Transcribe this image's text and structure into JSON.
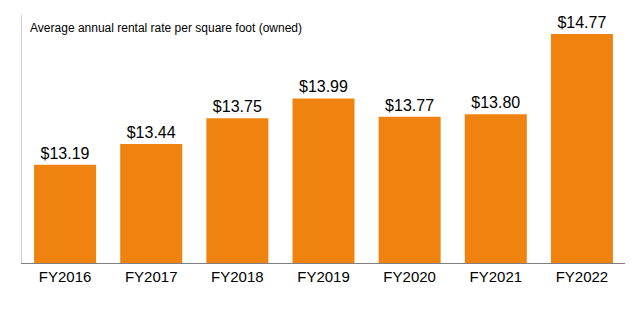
{
  "chart_data": {
    "type": "bar",
    "title": "Average annual rental rate per square foot (owned)",
    "categories": [
      "FY2016",
      "FY2017",
      "FY2018",
      "FY2019",
      "FY2020",
      "FY2021",
      "FY2022"
    ],
    "values": [
      13.19,
      13.44,
      13.75,
      13.99,
      13.77,
      13.8,
      14.77
    ],
    "value_labels": [
      "$13.19",
      "$13.44",
      "$13.75",
      "$13.99",
      "$13.77",
      "$13.80",
      "$14.77"
    ],
    "color": "#f0830f",
    "ylim": [
      12,
      15
    ],
    "grid": false,
    "data_labels": true,
    "tick_labels": "x"
  }
}
